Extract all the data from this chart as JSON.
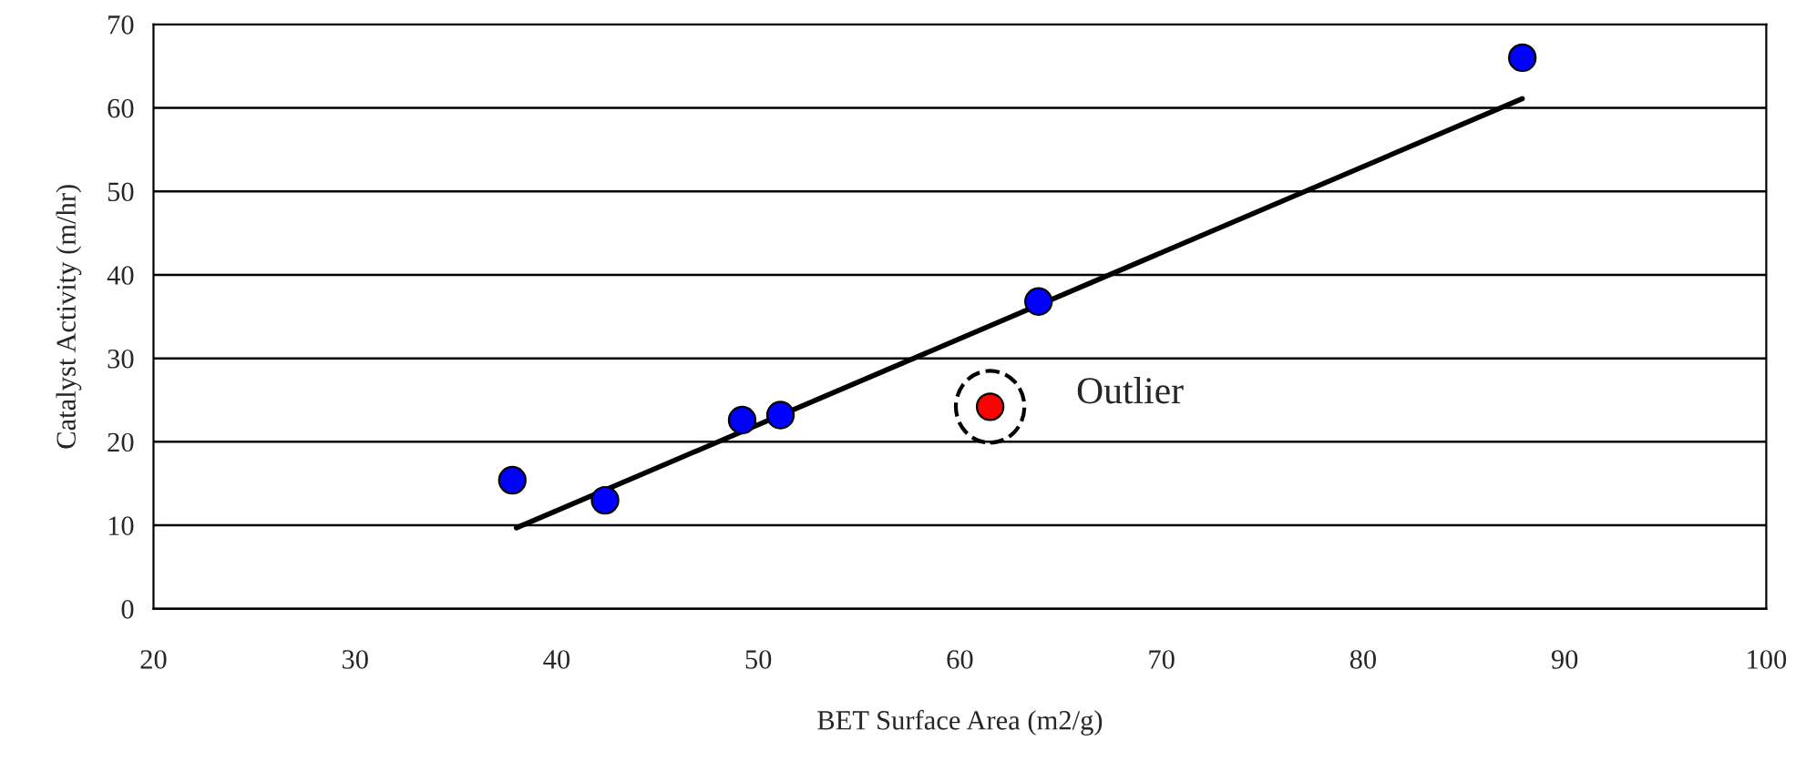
{
  "chart_data": {
    "type": "scatter",
    "xlabel": "BET Surface Area (m2/g)",
    "ylabel": "Catalyst Activity (m/hr)",
    "xlim": [
      20,
      100
    ],
    "xticks": [
      20,
      30,
      40,
      50,
      60,
      70,
      80,
      90,
      100
    ],
    "ylim": [
      0,
      70
    ],
    "yticks": [
      0,
      10,
      20,
      30,
      40,
      50,
      60,
      70
    ],
    "grid": "y",
    "marker": "circle",
    "series": [
      {
        "color": "#0000ff",
        "x": [
          37.8,
          42.4,
          49.2,
          51.1,
          63.9,
          87.9
        ],
        "values": [
          15.4,
          13.0,
          22.6,
          23.2,
          36.8,
          66.0
        ]
      },
      {
        "color": "#ff0000",
        "x": [
          61.5
        ],
        "values": [
          24.2
        ]
      },
      {
        "type": "line",
        "color": "#000000",
        "line_style": "solid",
        "marker": "none",
        "x": [
          38.0,
          87.9
        ],
        "values": [
          9.7,
          61.1
        ]
      }
    ],
    "annotations": [
      {
        "text": "Outlier",
        "x": 61.5,
        "y": 24.2
      }
    ]
  }
}
